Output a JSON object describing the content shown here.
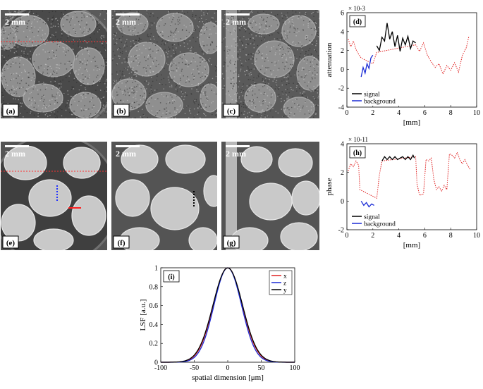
{
  "images": [
    {
      "label": "(a)",
      "scalebar": "2 mm",
      "kind": "attenuation",
      "dashed": true
    },
    {
      "label": "(b)",
      "scalebar": "2 mm",
      "kind": "attenuation",
      "dashed": false
    },
    {
      "label": "(c)",
      "scalebar": "2 mm",
      "kind": "attenuation",
      "dashed": false,
      "rod": true
    },
    {
      "label": "(e)",
      "scalebar": "2 mm",
      "kind": "phase",
      "dashed": true
    },
    {
      "label": "(f)",
      "scalebar": "2 mm",
      "kind": "phase",
      "dashed": false
    },
    {
      "label": "(g)",
      "scalebar": "2 mm",
      "kind": "phase",
      "dashed": false,
      "rod": true
    }
  ],
  "chart_data": [
    {
      "type": "line",
      "label": "(d)",
      "xlabel": "[mm]",
      "ylabel": "attenuation",
      "exponent": "× 10-3",
      "xlim": [
        0,
        10
      ],
      "ylim": [
        -4,
        6
      ],
      "xticks": [
        0,
        2,
        4,
        6,
        8,
        10
      ],
      "yticks": [
        -4,
        -2,
        0,
        2,
        4,
        6
      ],
      "legend": [
        "signal",
        "background"
      ],
      "legend_position": "bottom-left",
      "series": [
        {
          "name": "",
          "style": "dotted",
          "color": "#e02020",
          "x": [
            0.1,
            0.3,
            0.5,
            0.7,
            0.9,
            1.1,
            2.0,
            2.3,
            5.3,
            5.6,
            5.9,
            6.2,
            6.5,
            6.8,
            7.1,
            7.4,
            7.7,
            8.0,
            8.3,
            8.6,
            8.9,
            9.2,
            9.4
          ],
          "y": [
            3.2,
            2.4,
            3.0,
            2.1,
            1.6,
            1.2,
            0.6,
            1.8,
            2.6,
            1.9,
            2.8,
            1.5,
            0.8,
            0.2,
            0.6,
            -0.5,
            0.4,
            -0.1,
            0.7,
            -0.3,
            1.5,
            2.3,
            3.5
          ]
        },
        {
          "name": "signal",
          "style": "solid",
          "color": "#000000",
          "x": [
            2.3,
            2.5,
            2.7,
            2.9,
            3.1,
            3.3,
            3.5,
            3.7,
            3.9,
            4.1,
            4.3,
            4.5,
            4.7,
            4.9,
            5.1,
            5.3
          ],
          "y": [
            2.5,
            2.0,
            3.4,
            3.0,
            4.9,
            3.2,
            4.0,
            2.4,
            3.6,
            1.9,
            3.3,
            2.6,
            3.5,
            2.2,
            3.0,
            2.8
          ]
        },
        {
          "name": "background",
          "style": "solid",
          "color": "#1a2bd6",
          "x": [
            1.1,
            1.25,
            1.4,
            1.55,
            1.7,
            1.85,
            2.0
          ],
          "y": [
            -0.8,
            0.2,
            -0.4,
            0.6,
            0.1,
            1.2,
            1.5
          ]
        }
      ]
    },
    {
      "type": "line",
      "label": "(h)",
      "xlabel": "[mm]",
      "ylabel": "phase",
      "exponent": "× 10-11",
      "xlim": [
        0,
        10
      ],
      "ylim": [
        -2,
        4
      ],
      "xticks": [
        0,
        2,
        4,
        6,
        8,
        10
      ],
      "yticks": [
        -2,
        0,
        2,
        4
      ],
      "legend": [
        "signal",
        "background"
      ],
      "legend_position": "bottom-left",
      "series": [
        {
          "name": "",
          "style": "dotted",
          "color": "#e02020",
          "x": [
            0.1,
            0.3,
            0.5,
            0.7,
            0.9,
            1.0,
            2.3,
            2.5,
            2.7,
            5.3,
            5.4,
            5.6,
            5.9,
            6.1,
            6.3,
            6.5,
            6.7,
            6.9,
            7.1,
            7.3,
            7.5,
            7.7,
            7.9,
            8.1,
            8.3,
            8.5,
            8.7,
            8.9,
            9.1,
            9.3,
            9.5
          ],
          "y": [
            2.1,
            2.6,
            2.4,
            2.8,
            2.5,
            0.8,
            0.2,
            1.8,
            2.8,
            3.1,
            1.2,
            0.4,
            0.5,
            2.9,
            2.8,
            3.0,
            1.5,
            0.8,
            1.0,
            0.7,
            1.1,
            0.8,
            3.3,
            3.2,
            3.0,
            3.4,
            2.9,
            2.6,
            2.9,
            2.5,
            2.2
          ]
        },
        {
          "name": "signal",
          "style": "solid",
          "color": "#000000",
          "x": [
            2.7,
            2.9,
            3.1,
            3.3,
            3.5,
            3.7,
            3.9,
            4.1,
            4.3,
            4.5,
            4.7,
            4.9,
            5.1,
            5.2
          ],
          "y": [
            2.8,
            3.1,
            2.9,
            3.1,
            2.9,
            3.1,
            2.9,
            3.0,
            3.1,
            2.9,
            3.1,
            2.9,
            3.2,
            3.0
          ]
        },
        {
          "name": "background",
          "style": "solid",
          "color": "#1a2bd6",
          "x": [
            1.1,
            1.3,
            1.5,
            1.7,
            1.9,
            2.1
          ],
          "y": [
            0.0,
            -0.3,
            -0.1,
            -0.4,
            -0.2,
            -0.3
          ]
        }
      ]
    },
    {
      "type": "line",
      "label": "(i)",
      "xlabel": "spatial dimension [μm]",
      "ylabel": "LSF [a.u.]",
      "xlim": [
        -100,
        100
      ],
      "ylim": [
        0,
        1
      ],
      "xticks": [
        -100,
        -50,
        0,
        50,
        100
      ],
      "yticks": [
        0,
        0.2,
        0.4,
        0.6,
        0.8,
        1
      ],
      "legend": [
        "x",
        "z",
        "y"
      ],
      "legend_position": "top-right",
      "series": [
        {
          "name": "x",
          "style": "solid",
          "color": "#e02020",
          "sigma": 21.5
        },
        {
          "name": "z",
          "style": "solid",
          "color": "#1a2bd6",
          "sigma": 20.5
        },
        {
          "name": "y",
          "style": "solid",
          "color": "#000000",
          "sigma": 22.0
        }
      ]
    }
  ]
}
